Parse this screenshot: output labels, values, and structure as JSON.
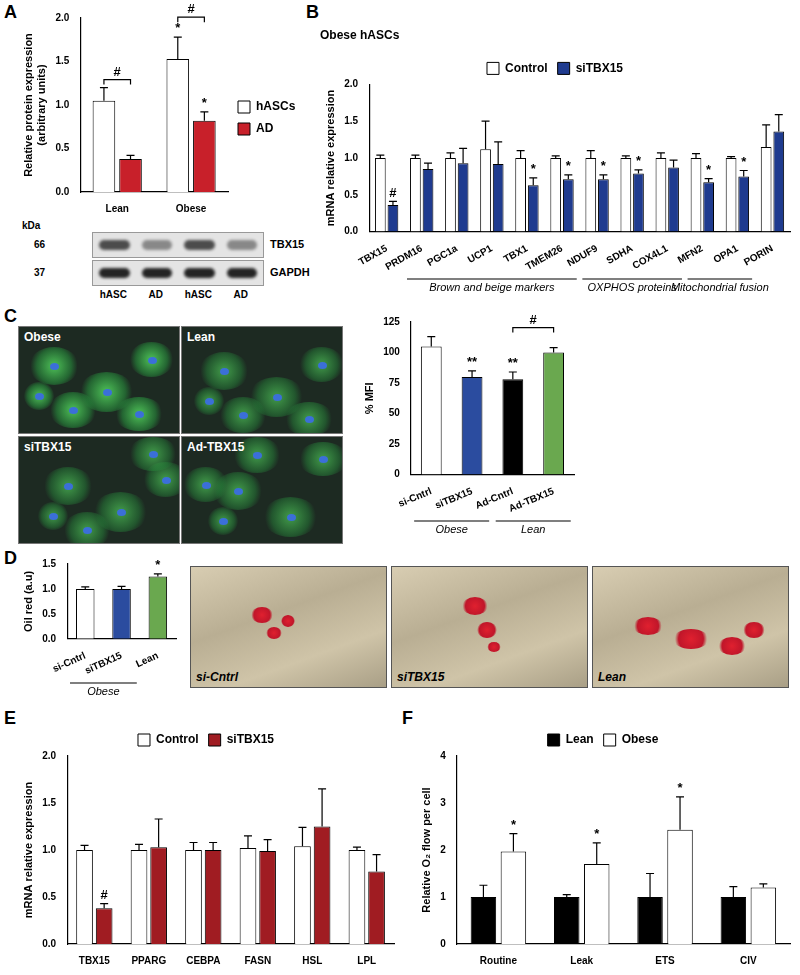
{
  "chart_data": [
    {
      "panel": "A",
      "type": "bar",
      "categories": [
        "Lean",
        "Obese"
      ],
      "y_label": [
        "Relative protein expression",
        "(arbitrary units)"
      ],
      "ylim": [
        0,
        2
      ],
      "yticks": [
        {
          "value": 0,
          "label": "0.0"
        },
        {
          "value": 0.5,
          "label": "0.5"
        },
        {
          "value": 1,
          "label": "1.0"
        },
        {
          "value": 1.5,
          "label": "1.5"
        },
        {
          "value": 2,
          "label": "2.0"
        }
      ],
      "grid": false,
      "legend": "right",
      "series": [
        {
          "name": "hASCs",
          "color": "#ffffff",
          "values": [
            1.05,
            1.53
          ],
          "errors": [
            0.15,
            0.25
          ],
          "marks": [
            null,
            "*"
          ]
        },
        {
          "name": "AD",
          "color": "#c8202a",
          "values": [
            0.38,
            0.82
          ],
          "errors": [
            0.04,
            0.1
          ],
          "marks": [
            null,
            "*"
          ]
        }
      ],
      "brackets": [
        {
          "from": {
            "category": "Lean",
            "series": "hASCs"
          },
          "to": {
            "category": "Lean",
            "series": "AD"
          },
          "label": "#"
        },
        {
          "from": {
            "category": "Obese",
            "series": "hASCs"
          },
          "to": {
            "category": "Obese",
            "series": "AD"
          },
          "label": "#"
        }
      ]
    },
    {
      "panel": "B",
      "type": "bar",
      "title": "Obese hASCs",
      "categories": [
        "TBX15",
        "PRDM16",
        "PGC1a",
        "UCP1",
        "TBX1",
        "TMEM26",
        "NDUF9",
        "SDHA",
        "COX4L1",
        "MFN2",
        "OPA1",
        "PORIN"
      ],
      "y_label": "mRNA relative expression",
      "ylim": [
        0,
        2
      ],
      "yticks": [
        {
          "value": 0,
          "label": "0.0"
        },
        {
          "value": 0.5,
          "label": "0.5"
        },
        {
          "value": 1,
          "label": "1.0"
        },
        {
          "value": 1.5,
          "label": "1.5"
        },
        {
          "value": 2,
          "label": "2.0"
        }
      ],
      "grid": false,
      "legend": "top",
      "series": [
        {
          "name": "Control",
          "color": "#ffffff",
          "values": [
            1.0,
            1.0,
            1.0,
            1.12,
            1.0,
            1.0,
            1.0,
            1.0,
            1.0,
            1.0,
            1.0,
            1.15
          ],
          "errors": [
            0.04,
            0.04,
            0.07,
            0.38,
            0.1,
            0.03,
            0.1,
            0.03,
            0.07,
            0.06,
            0.02,
            0.3
          ],
          "marks": [
            null,
            null,
            null,
            null,
            null,
            null,
            null,
            null,
            null,
            null,
            null,
            null
          ]
        },
        {
          "name": "siTBX15",
          "color": "#1f3b8f",
          "values": [
            0.36,
            0.85,
            0.93,
            0.92,
            0.63,
            0.71,
            0.71,
            0.79,
            0.87,
            0.67,
            0.75,
            1.36
          ],
          "errors": [
            0.05,
            0.08,
            0.2,
            0.3,
            0.1,
            0.06,
            0.06,
            0.05,
            0.1,
            0.05,
            0.08,
            0.23
          ],
          "marks": [
            "#",
            null,
            null,
            null,
            "*",
            "*",
            "*",
            "*",
            null,
            "*",
            "*",
            null
          ]
        }
      ],
      "groups": [
        {
          "label": "Brown and beige markers",
          "categories": [
            "PRDM16",
            "TMEM26"
          ]
        },
        {
          "label": "OXPHOS proteins",
          "categories": [
            "NDUF9",
            "COX4L1"
          ]
        },
        {
          "label": "Mitochondrial fusion",
          "categories": [
            "MFN2",
            "OPA1"
          ]
        }
      ]
    },
    {
      "type": "bar",
      "categories": [
        "si-Cntrl",
        "siTBX15",
        "Ad-Cntrl",
        "Ad-TBX15"
      ],
      "y_label": "% MFI",
      "ylim": [
        0,
        125
      ],
      "yticks": [
        0,
        25,
        50,
        75,
        100,
        125
      ],
      "grid": false,
      "series": [
        {
          "colors": [
            "#ffffff",
            "#2b4c9f",
            "#000000",
            "#6aa84f"
          ],
          "values": [
            105,
            80,
            78,
            100
          ],
          "errors": [
            8,
            5,
            6,
            4
          ],
          "marks": [
            null,
            "**",
            "**",
            null
          ]
        }
      ],
      "brackets": [
        {
          "from": {
            "category": "Ad-Cntrl"
          },
          "to": {
            "category": "Ad-TBX15"
          },
          "label": "#"
        }
      ],
      "groups": [
        {
          "label": "Obese",
          "categories": [
            "si-Cntrl",
            "siTBX15"
          ]
        },
        {
          "label": "Lean",
          "categories": [
            "Ad-Cntrl",
            "Ad-TBX15"
          ]
        }
      ]
    },
    {
      "panel": "D",
      "type": "bar",
      "categories": [
        "si-Cntrl",
        "siTBX15",
        "Lean"
      ],
      "y_label": "Oil red (a.u)",
      "ylim": [
        0,
        1.5
      ],
      "yticks": [
        {
          "value": 0,
          "label": "0.0"
        },
        {
          "value": 0.5,
          "label": "0.5"
        },
        {
          "value": 1,
          "label": "1.0"
        },
        {
          "value": 1.5,
          "label": "1.5"
        }
      ],
      "grid": false,
      "series": [
        {
          "colors": [
            "#ffffff",
            "#2b4c9f",
            "#6aa84f"
          ],
          "values": [
            1.0,
            1.0,
            1.25
          ],
          "errors": [
            0.04,
            0.05,
            0.05
          ],
          "marks": [
            null,
            null,
            "*"
          ]
        }
      ],
      "groups": [
        {
          "label": "Obese",
          "categories": [
            "si-Cntrl",
            "siTBX15"
          ]
        }
      ]
    },
    {
      "panel": "E",
      "type": "bar",
      "categories": [
        "TBX15",
        "PPARG",
        "CEBPA",
        "FASN",
        "HSL",
        "LPL"
      ],
      "y_label": "mRNA relative expression",
      "ylim": [
        0,
        2
      ],
      "yticks": [
        {
          "value": 0,
          "label": "0.0"
        },
        {
          "value": 0.5,
          "label": "0.5"
        },
        {
          "value": 1,
          "label": "1.0"
        },
        {
          "value": 1.5,
          "label": "1.5"
        },
        {
          "value": 2,
          "label": "2.0"
        }
      ],
      "grid": false,
      "legend": "top",
      "series": [
        {
          "name": "Control",
          "color": "#ffffff",
          "values": [
            1.0,
            1.0,
            1.0,
            1.02,
            1.04,
            1.0
          ],
          "errors": [
            0.05,
            0.06,
            0.08,
            0.13,
            0.2,
            0.03
          ],
          "marks": [
            null,
            null,
            null,
            null,
            null,
            null
          ]
        },
        {
          "name": "siTBX15",
          "color": "#a01c22",
          "values": [
            0.38,
            1.03,
            1.0,
            0.99,
            1.25,
            0.77
          ],
          "errors": [
            0.05,
            0.3,
            0.08,
            0.12,
            0.4,
            0.18
          ],
          "marks": [
            "#",
            null,
            null,
            null,
            null,
            null
          ]
        }
      ]
    },
    {
      "panel": "F",
      "type": "bar",
      "categories": [
        "Routine",
        "Leak",
        "ETS",
        "CIV"
      ],
      "y_label": "Relative O₂ flow per cell",
      "ylim": [
        0,
        4
      ],
      "yticks": [
        0,
        1,
        2,
        3,
        4
      ],
      "grid": false,
      "legend": "top",
      "series": [
        {
          "name": "Lean",
          "color": "#000000",
          "values": [
            1.0,
            1.0,
            1.0,
            1.0
          ],
          "errors": [
            0.25,
            0.05,
            0.5,
            0.22
          ],
          "marks": [
            null,
            null,
            null,
            null
          ]
        },
        {
          "name": "Obese",
          "color": "#ffffff",
          "values": [
            1.97,
            1.7,
            2.43,
            1.2
          ],
          "errors": [
            0.38,
            0.45,
            0.7,
            0.08
          ],
          "marks": [
            "*",
            "*",
            "*",
            null
          ]
        }
      ]
    }
  ],
  "blot": {
    "marker_label": "kDa",
    "rows": [
      {
        "kDa": "66",
        "protein": "TBX15"
      },
      {
        "kDa": "37",
        "protein": "GAPDH"
      }
    ],
    "lanes": [
      "hASC",
      "AD",
      "hASC",
      "AD"
    ]
  },
  "micrographs": {
    "panel": "C",
    "labels": [
      "Obese",
      "Lean",
      "siTBX15",
      "Ad-TBX15"
    ]
  },
  "stain_images": {
    "labels": [
      "si-Cntrl",
      "siTBX15",
      "Lean"
    ]
  }
}
